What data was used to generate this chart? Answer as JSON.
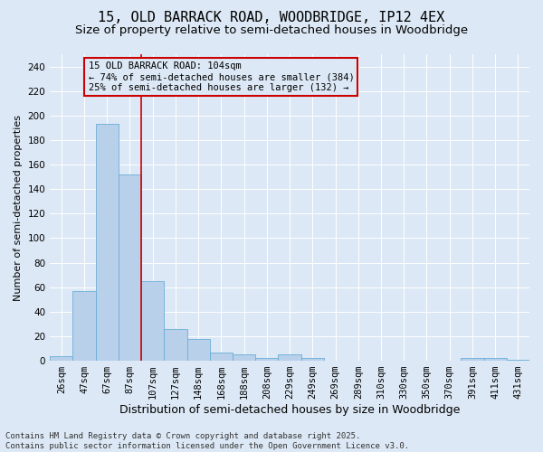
{
  "title": "15, OLD BARRACK ROAD, WOODBRIDGE, IP12 4EX",
  "subtitle": "Size of property relative to semi-detached houses in Woodbridge",
  "xlabel": "Distribution of semi-detached houses by size in Woodbridge",
  "ylabel": "Number of semi-detached properties",
  "categories": [
    "26sqm",
    "47sqm",
    "67sqm",
    "87sqm",
    "107sqm",
    "127sqm",
    "148sqm",
    "168sqm",
    "188sqm",
    "208sqm",
    "229sqm",
    "249sqm",
    "269sqm",
    "289sqm",
    "310sqm",
    "330sqm",
    "350sqm",
    "370sqm",
    "391sqm",
    "411sqm",
    "431sqm"
  ],
  "values": [
    4,
    57,
    193,
    152,
    65,
    26,
    18,
    7,
    5,
    2,
    5,
    2,
    0,
    0,
    0,
    0,
    0,
    0,
    2,
    2,
    1
  ],
  "bar_color": "#b8d0ea",
  "bar_edge_color": "#6aaed6",
  "vline_color": "#cc0000",
  "annotation_text": "15 OLD BARRACK ROAD: 104sqm\n← 74% of semi-detached houses are smaller (384)\n25% of semi-detached houses are larger (132) →",
  "annotation_box_color": "#cc0000",
  "background_color": "#dce8f5",
  "grid_color": "#ffffff",
  "footer": "Contains HM Land Registry data © Crown copyright and database right 2025.\nContains public sector information licensed under the Open Government Licence v3.0.",
  "ylim": [
    0,
    250
  ],
  "yticks": [
    0,
    20,
    40,
    60,
    80,
    100,
    120,
    140,
    160,
    180,
    200,
    220,
    240
  ],
  "title_fontsize": 11,
  "subtitle_fontsize": 9.5,
  "xlabel_fontsize": 9,
  "ylabel_fontsize": 8,
  "tick_fontsize": 7.5,
  "annot_fontsize": 7.5,
  "footer_fontsize": 6.5
}
